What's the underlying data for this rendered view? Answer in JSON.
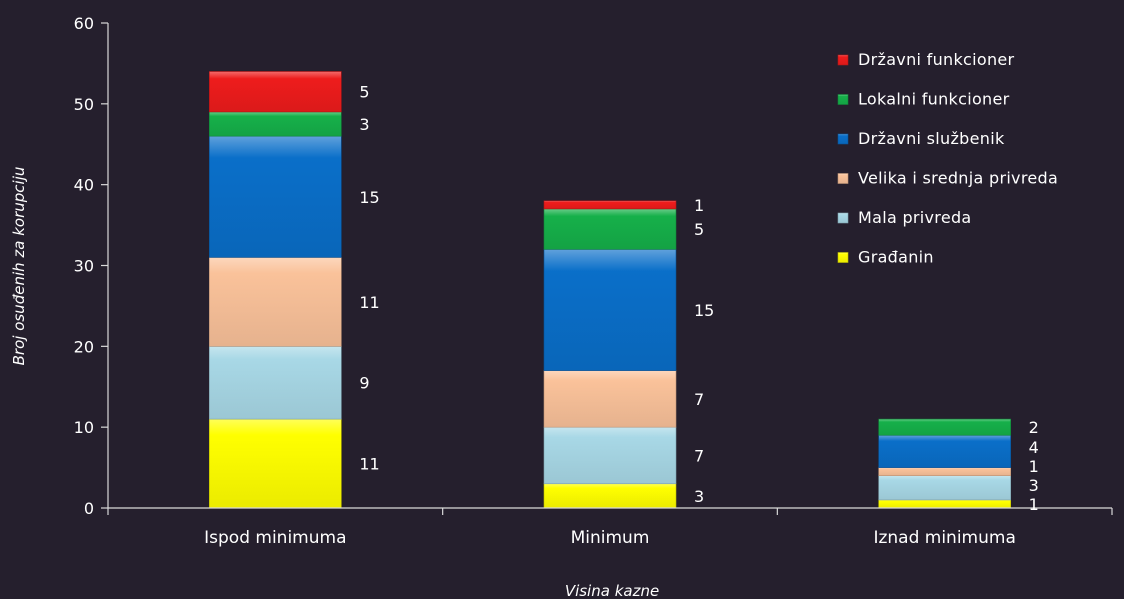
{
  "chart_data": {
    "type": "bar",
    "stacked": true,
    "categories": [
      "Ispod minimuma",
      "Minimum",
      "Iznad minimuma"
    ],
    "series": [
      {
        "name": "Građanin",
        "values": [
          11,
          3,
          1
        ],
        "color": "#ffff00"
      },
      {
        "name": "Mala privreda",
        "values": [
          9,
          7,
          3
        ],
        "color": "#a8d8e6"
      },
      {
        "name": "Velika i srednja privreda",
        "values": [
          11,
          7,
          1
        ],
        "color": "#fac29a"
      },
      {
        "name": "Državni službenik",
        "values": [
          15,
          15,
          4
        ],
        "color": "#0a6fc9"
      },
      {
        "name": "Lokalni funkcioner",
        "values": [
          3,
          5,
          2
        ],
        "color": "#16b04a"
      },
      {
        "name": "Državni funkcioner",
        "values": [
          5,
          1,
          0
        ],
        "color": "#ee1c1c"
      }
    ],
    "xlabel": "Visina kazne",
    "ylabel": "Broj osuđenih za korupciju",
    "ylim": [
      0,
      60
    ],
    "yticks": [
      0,
      10,
      20,
      30,
      40,
      50,
      60
    ],
    "grid": false,
    "legend_position": "top-right",
    "data_labels": true,
    "background": "#251f2d"
  }
}
